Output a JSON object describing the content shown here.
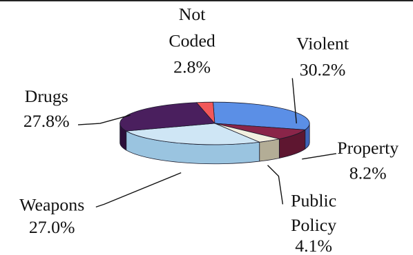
{
  "chart_data": {
    "type": "pie",
    "style": "3d-exploded-none",
    "title": "",
    "start": "Violent slice begins at top, proceeding clockwise",
    "categories": [
      "Violent",
      "Property",
      "Public Policy",
      "Weapons",
      "Drugs",
      "Not Coded"
    ],
    "series": [
      {
        "values": [
          30.2,
          8.2,
          4.1,
          27.0,
          27.8,
          2.8
        ]
      }
    ],
    "slices": [
      {
        "label": "Violent",
        "value_text": "30.2%",
        "value": 30.2,
        "color": "#5b8fe6",
        "side": "#3f63b8"
      },
      {
        "label": "Property",
        "value_text": "8.2%",
        "value": 8.2,
        "color": "#8a2549",
        "side": "#5e1630"
      },
      {
        "label": "Public Policy",
        "value_text": "4.1%",
        "value": 4.1,
        "color": "#f2efdf",
        "side": "#b3ad96"
      },
      {
        "label": "Weapons",
        "value_text": "27.0%",
        "value": 27.0,
        "color": "#cfe6f5",
        "side": "#9ac4e0"
      },
      {
        "label": "Drugs",
        "value_text": "27.8%",
        "value": 27.8,
        "color": "#4a1f5e",
        "side": "#2c0f3a"
      },
      {
        "label": "Not Coded",
        "value_text": "2.8%",
        "value": 2.8,
        "color": "#f2585a",
        "side": "#b83a3c"
      }
    ],
    "legend": "none (labels placed around the pie)"
  }
}
